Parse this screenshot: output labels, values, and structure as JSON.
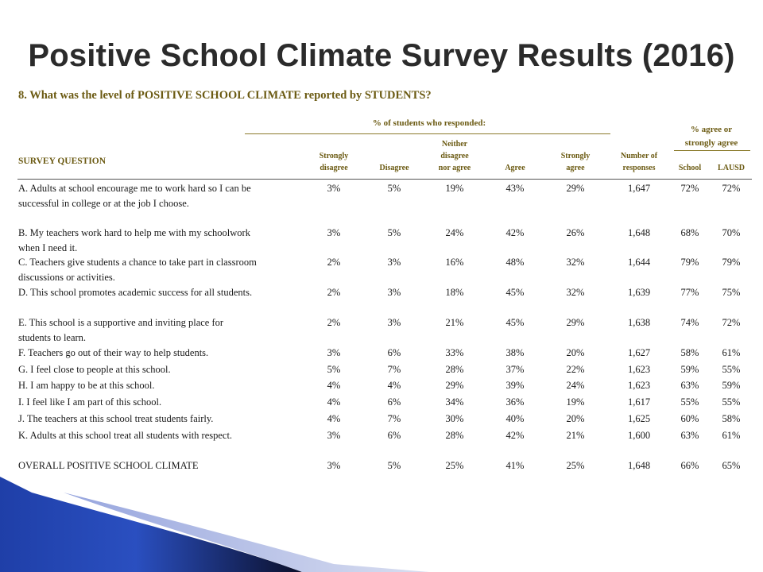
{
  "slide": {
    "title": "Positive School Climate Survey Results (2016)"
  },
  "question": "8. What was the level of POSITIVE SCHOOL CLIMATE reported by STUDENTS?",
  "table": {
    "group_headers": {
      "responded": "% of students who responded:",
      "agree_line1": "% agree or",
      "agree_line2": "strongly agree"
    },
    "survey_question_header": "SURVEY QUESTION",
    "columns": {
      "strongly_disagree": [
        "Strongly",
        "disagree"
      ],
      "disagree": [
        "Disagree"
      ],
      "neither": [
        "Neither",
        "disagree",
        "nor agree"
      ],
      "agree": [
        "Agree"
      ],
      "strongly_agree": [
        "Strongly",
        "agree"
      ],
      "responses": [
        "Number of",
        "responses"
      ],
      "school": [
        "School"
      ],
      "lausd": [
        "LAUSD"
      ]
    },
    "rows": [
      {
        "q": "A. Adults at school encourage me to work hard so I can be successful in college or at the job I choose.",
        "sd": "3%",
        "d": "5%",
        "n": "19%",
        "a": "43%",
        "sa": "29%",
        "num": "1,647",
        "school": "72%",
        "lausd": "72%"
      },
      {
        "q": "B. My teachers work hard to help me with my schoolwork when I need it.",
        "sd": "3%",
        "d": "5%",
        "n": "24%",
        "a": "42%",
        "sa": "26%",
        "num": "1,648",
        "school": "68%",
        "lausd": "70%"
      },
      {
        "q": "C. Teachers give students a chance to take part in classroom discussions or activities.",
        "sd": "2%",
        "d": "3%",
        "n": "16%",
        "a": "48%",
        "sa": "32%",
        "num": "1,644",
        "school": "79%",
        "lausd": "79%"
      },
      {
        "q": "D. This school promotes academic success for all students.",
        "sd": "2%",
        "d": "3%",
        "n": "18%",
        "a": "45%",
        "sa": "32%",
        "num": "1,639",
        "school": "77%",
        "lausd": "75%"
      },
      {
        "q": "E. This school is a supportive and inviting place for students to learn.",
        "sd": "2%",
        "d": "3%",
        "n": "21%",
        "a": "45%",
        "sa": "29%",
        "num": "1,638",
        "school": "74%",
        "lausd": "72%"
      },
      {
        "q": "F. Teachers go out of their way to help students.",
        "sd": "3%",
        "d": "6%",
        "n": "33%",
        "a": "38%",
        "sa": "20%",
        "num": "1,627",
        "school": "58%",
        "lausd": "61%"
      },
      {
        "q": "G. I feel close to people at this school.",
        "sd": "5%",
        "d": "7%",
        "n": "28%",
        "a": "37%",
        "sa": "22%",
        "num": "1,623",
        "school": "59%",
        "lausd": "55%"
      },
      {
        "q": "H. I am happy to be at this school.",
        "sd": "4%",
        "d": "4%",
        "n": "29%",
        "a": "39%",
        "sa": "24%",
        "num": "1,623",
        "school": "63%",
        "lausd": "59%"
      },
      {
        "q": "I. I feel like I am part of this school.",
        "sd": "4%",
        "d": "6%",
        "n": "34%",
        "a": "36%",
        "sa": "19%",
        "num": "1,617",
        "school": "55%",
        "lausd": "55%"
      },
      {
        "q": "J. The teachers at this school treat students fairly.",
        "sd": "4%",
        "d": "7%",
        "n": "30%",
        "a": "40%",
        "sa": "20%",
        "num": "1,625",
        "school": "60%",
        "lausd": "58%"
      },
      {
        "q": "K. Adults at this school treat all students with respect.",
        "sd": "3%",
        "d": "6%",
        "n": "28%",
        "a": "42%",
        "sa": "21%",
        "num": "1,600",
        "school": "63%",
        "lausd": "61%"
      },
      {
        "q": "OVERALL POSITIVE SCHOOL CLIMATE",
        "sd": "3%",
        "d": "5%",
        "n": "25%",
        "a": "41%",
        "sa": "25%",
        "num": "1,648",
        "school": "66%",
        "lausd": "65%"
      }
    ]
  },
  "colors": {
    "title": "#2b2b2b",
    "header_gold": "#6b5a12",
    "rule_gold": "#8a7a2a",
    "accent_blue": "#1f3fa8"
  }
}
